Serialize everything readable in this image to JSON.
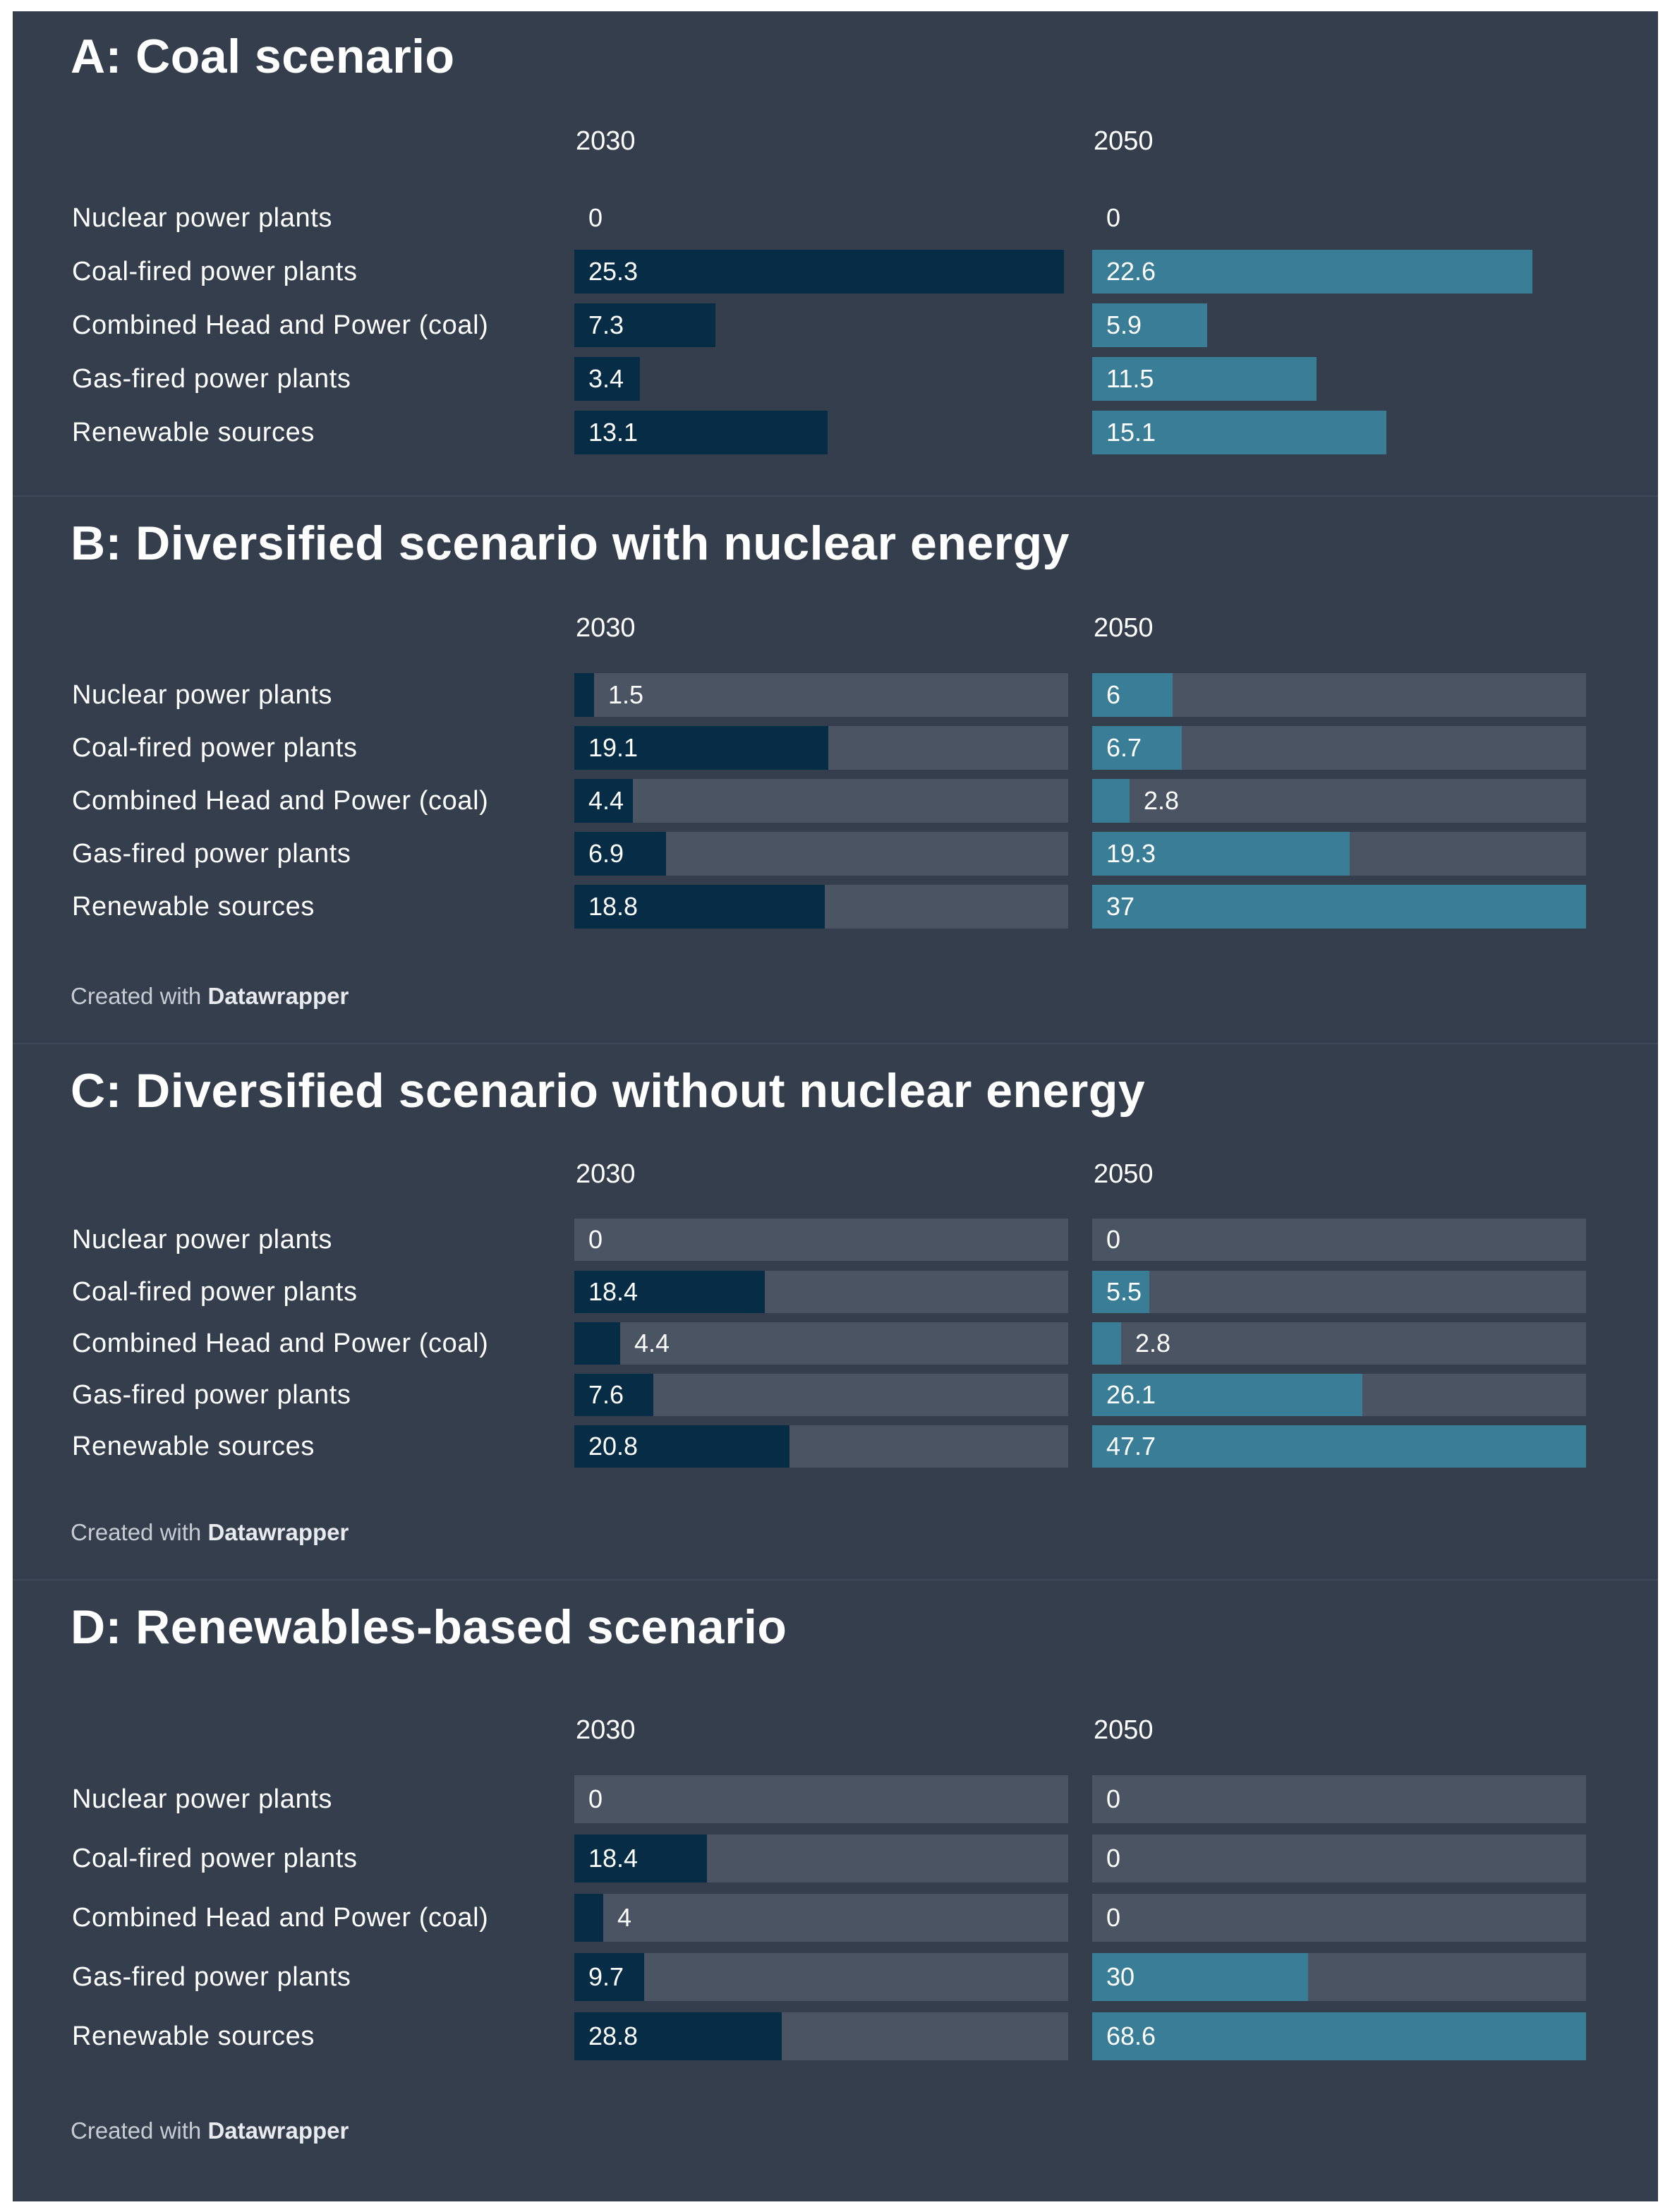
{
  "chart_data": [
    {
      "type": "bar",
      "title": "A: Coal scenario",
      "column_headers": [
        "2030",
        "2050"
      ],
      "categories": [
        "Nuclear power plants",
        "Coal-fired power plants",
        "Combined Head and Power (coal)",
        "Gas-fired power plants",
        "Renewable sources"
      ],
      "series": [
        {
          "name": "2030",
          "values": [
            0,
            25.3,
            7.3,
            3.4,
            13.1
          ],
          "labels": [
            "0",
            "25.3",
            "7.3",
            "3.4",
            "13.1"
          ]
        },
        {
          "name": "2050",
          "values": [
            0,
            22.6,
            5.9,
            11.5,
            15.1
          ],
          "labels": [
            "0",
            "22.6",
            "5.9",
            "11.5",
            "15.1"
          ]
        }
      ],
      "show_track": false,
      "credit": null
    },
    {
      "type": "bar",
      "title": "B: Diversified scenario with nuclear energy",
      "column_headers": [
        "2030",
        "2050"
      ],
      "categories": [
        "Nuclear power plants",
        "Coal-fired power plants",
        "Combined Head and Power (coal)",
        "Gas-fired power plants",
        "Renewable sources"
      ],
      "series": [
        {
          "name": "2030",
          "values": [
            1.5,
            19.1,
            4.4,
            6.9,
            18.8
          ],
          "labels": [
            "1.5",
            "19.1",
            "4.4",
            "6.9",
            "18.8"
          ]
        },
        {
          "name": "2050",
          "values": [
            6,
            6.7,
            2.8,
            19.3,
            37
          ],
          "labels": [
            "6",
            "6.7",
            "2.8",
            "19.3",
            "37"
          ]
        }
      ],
      "show_track": true,
      "credit": {
        "prefix": "Created with",
        "brand": "Datawrapper"
      }
    },
    {
      "type": "bar",
      "title": "C: Diversified scenario without nuclear energy",
      "column_headers": [
        "2030",
        "2050"
      ],
      "categories": [
        "Nuclear power plants",
        "Coal-fired power plants",
        "Combined Head and Power (coal)",
        "Gas-fired power plants",
        "Renewable sources"
      ],
      "series": [
        {
          "name": "2030",
          "values": [
            0,
            18.4,
            4.4,
            7.6,
            20.8
          ],
          "labels": [
            "0",
            "18.4",
            "4.4",
            "7.6",
            "20.8"
          ]
        },
        {
          "name": "2050",
          "values": [
            0,
            5.5,
            2.8,
            26.1,
            47.7
          ],
          "labels": [
            "0",
            "5.5",
            "2.8",
            "26.1",
            "47.7"
          ]
        }
      ],
      "show_track": true,
      "credit": {
        "prefix": "Created with",
        "brand": "Datawrapper"
      }
    },
    {
      "type": "bar",
      "title": "D: Renewables-based scenario",
      "column_headers": [
        "2030",
        "2050"
      ],
      "categories": [
        "Nuclear power plants",
        "Coal-fired power plants",
        "Combined Head and Power (coal)",
        "Gas-fired power plants",
        "Renewable sources"
      ],
      "series": [
        {
          "name": "2030",
          "values": [
            0,
            18.4,
            4,
            9.7,
            28.8
          ],
          "labels": [
            "0",
            "18.4",
            "4",
            "9.7",
            "28.8"
          ]
        },
        {
          "name": "2050",
          "values": [
            0,
            0,
            0,
            30,
            68.6
          ],
          "labels": [
            "0",
            "0",
            "0",
            "30",
            "68.6"
          ]
        }
      ],
      "show_track": true,
      "credit": {
        "prefix": "Created with",
        "brand": "Datawrapper"
      }
    }
  ],
  "colors": {
    "background": "#343e4c",
    "bar_2030": "#062d45",
    "bar_2050": "#3a7d96",
    "track": "#4a5463",
    "text": "#ffffff"
  }
}
